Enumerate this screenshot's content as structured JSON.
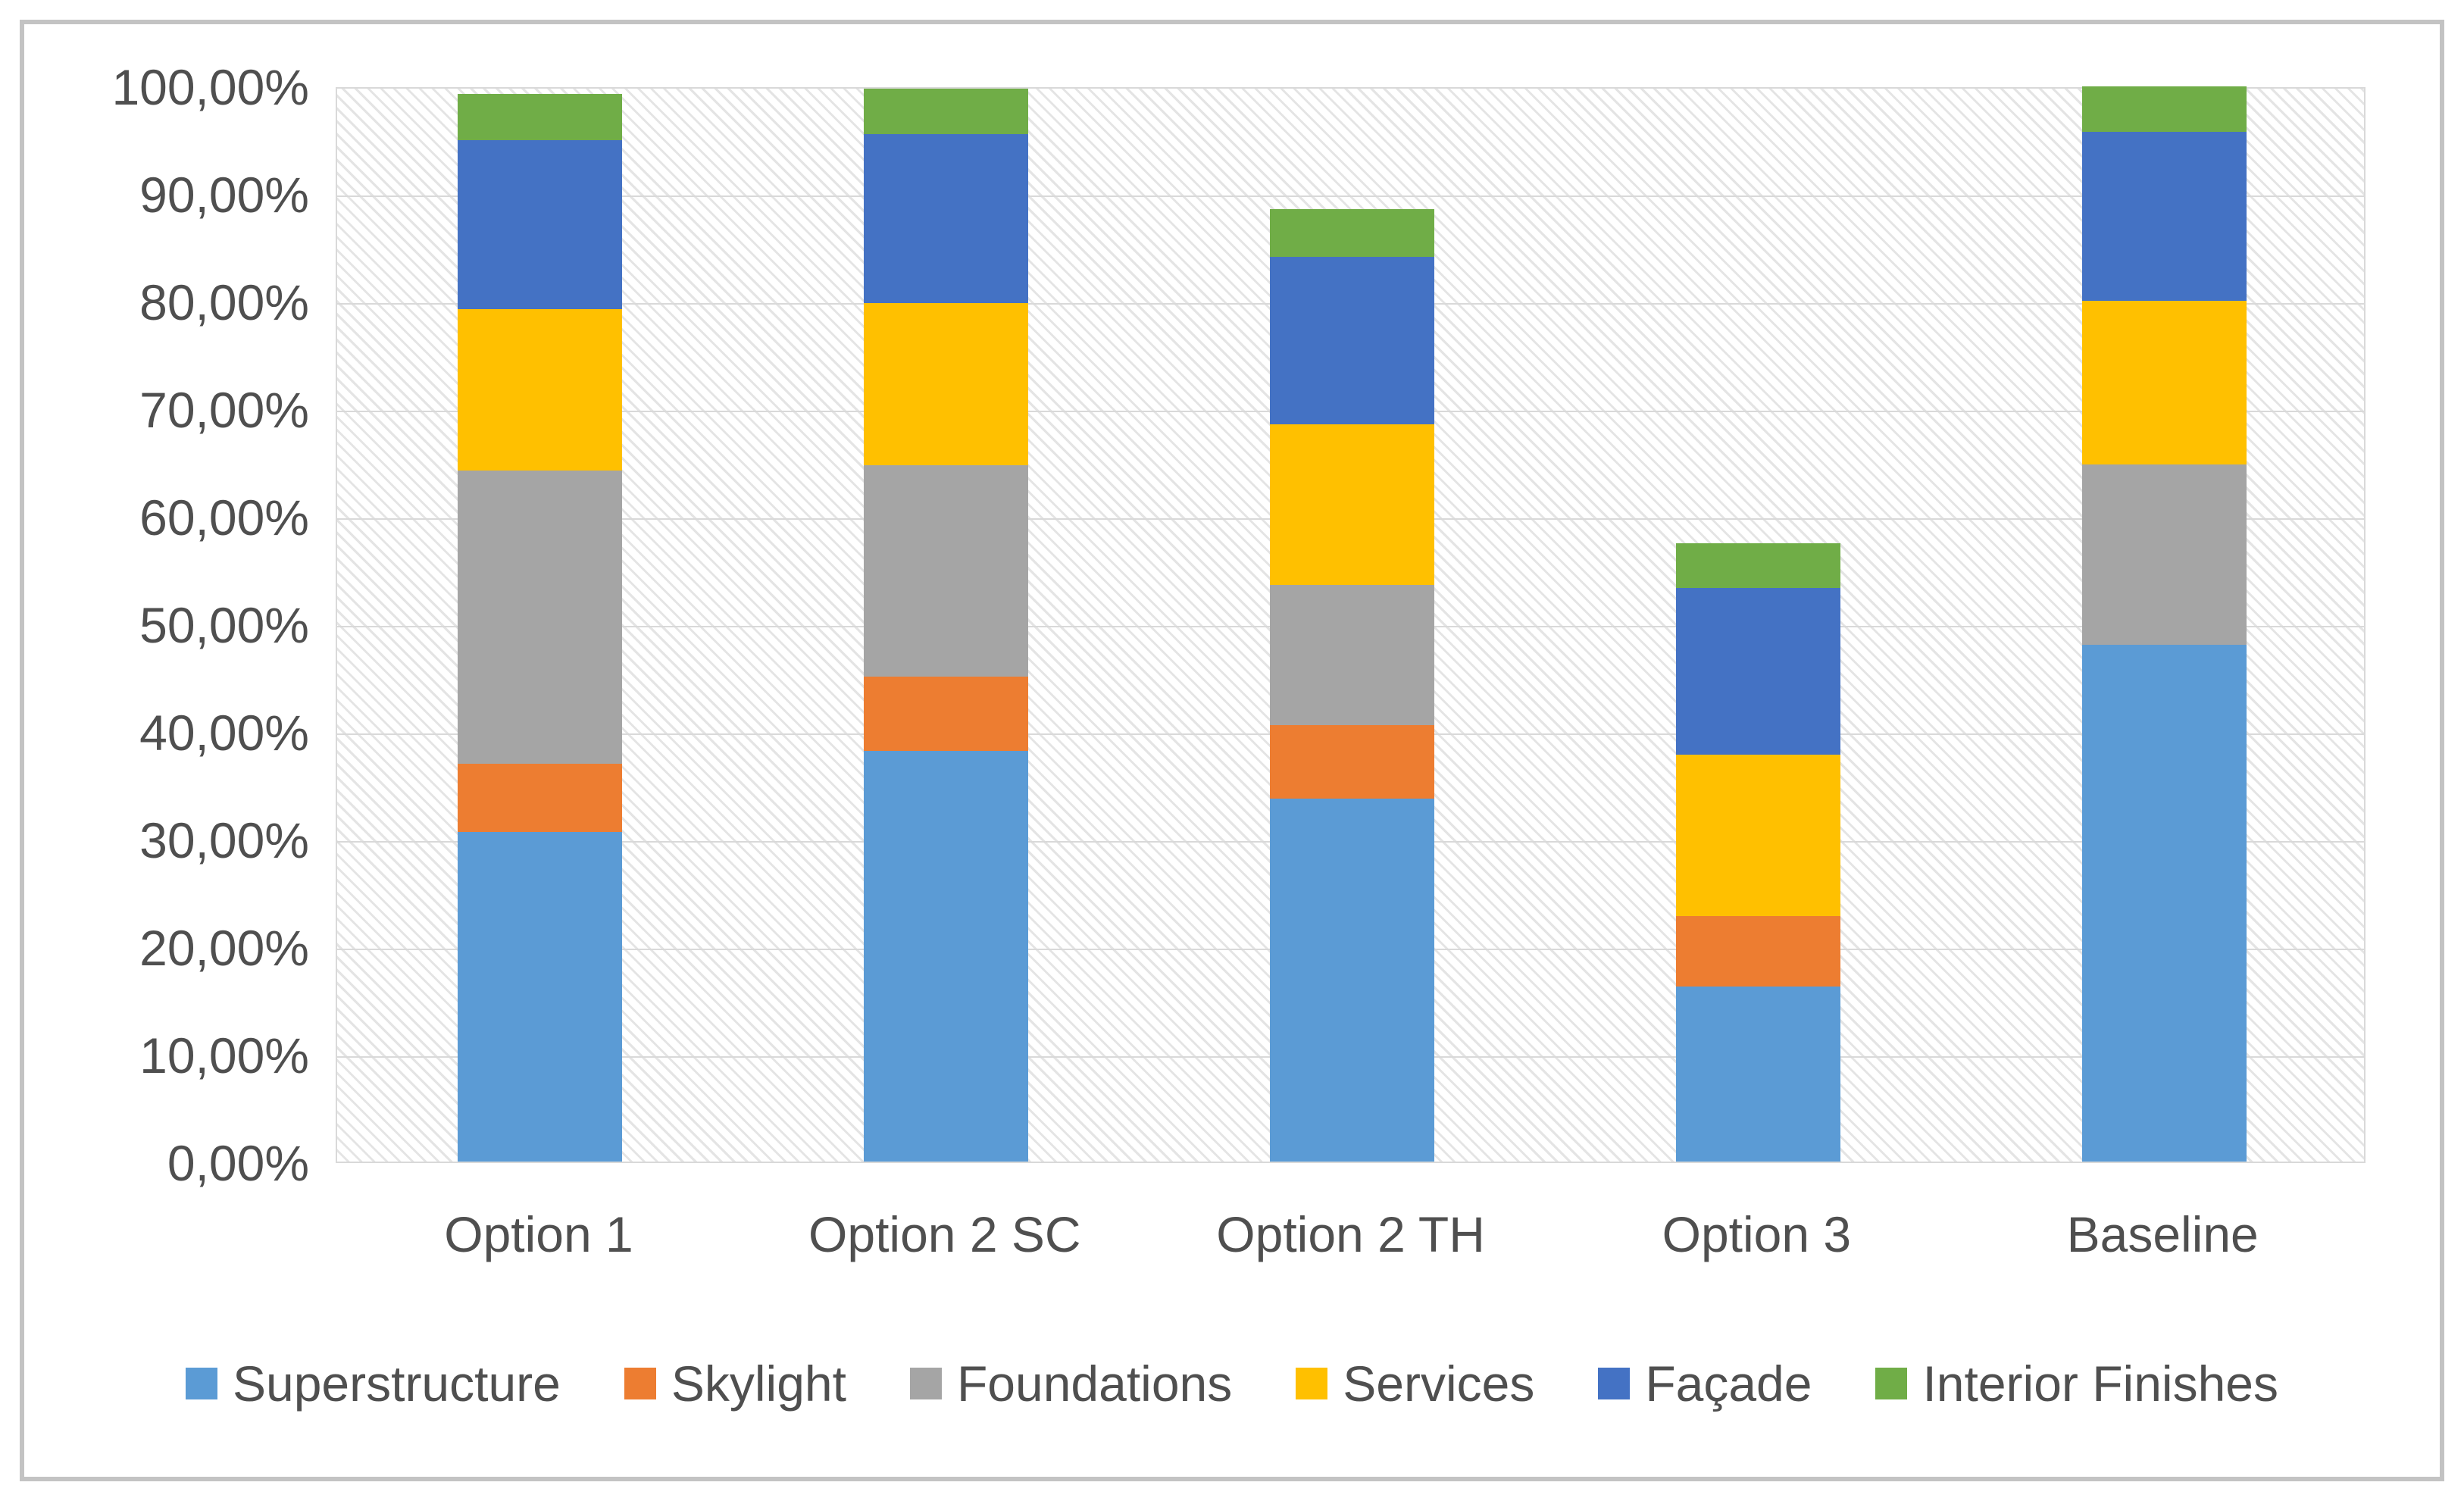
{
  "chart_data": {
    "type": "bar",
    "stacked": true,
    "orientation": "vertical",
    "title": "",
    "xlabel": "",
    "ylabel": "",
    "categories": [
      "Option 1",
      "Option 2 SC",
      "Option 2 TH",
      "Option 3",
      "Baseline"
    ],
    "series": [
      {
        "name": "Superstructure",
        "color": "#5B9BD5",
        "values": [
          30.6,
          38.2,
          33.7,
          16.3,
          48.0
        ]
      },
      {
        "name": "Skylight",
        "color": "#ED7D31",
        "values": [
          6.4,
          6.9,
          6.9,
          6.5,
          0.0
        ]
      },
      {
        "name": "Foundations",
        "color": "#A5A5A5",
        "values": [
          27.2,
          19.6,
          13.0,
          0.0,
          16.8
        ]
      },
      {
        "name": "Services",
        "color": "#FFC000",
        "values": [
          15.0,
          15.1,
          14.9,
          15.0,
          15.2
        ]
      },
      {
        "name": "Façade",
        "color": "#4472C4",
        "values": [
          15.7,
          15.7,
          15.6,
          15.5,
          15.7
        ]
      },
      {
        "name": "Interior Finishes",
        "color": "#70AD47",
        "values": [
          4.3,
          4.2,
          4.4,
          4.2,
          4.2
        ]
      }
    ],
    "stack_totals": [
      99.2,
      99.7,
      88.5,
      57.5,
      99.9
    ],
    "y_axis": {
      "min": 0,
      "max": 100,
      "step": 10,
      "unit": "%",
      "decimal_separator": ",",
      "tick_labels": [
        "0,00%",
        "10,00%",
        "20,00%",
        "30,00%",
        "40,00%",
        "50,00%",
        "60,00%",
        "70,00%",
        "80,00%",
        "90,00%",
        "100,00%"
      ]
    },
    "grid": true,
    "gridline_color": "#d9d9d9",
    "plot_background": "white-with-light-gray-diagonal-hatch",
    "legend_position": "bottom",
    "text_color": "#4f4f4f"
  }
}
